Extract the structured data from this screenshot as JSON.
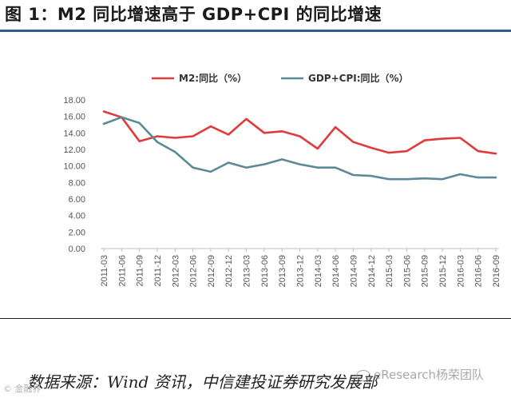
{
  "figure": {
    "title": "图 1：M2 同比增速高于 GDP+CPI 的同比增速",
    "source": "数据来源：Wind 资讯，中信建投证券研究发展部",
    "watermark": "eResearch杨荣团队",
    "corner_mark": "© 金融界"
  },
  "colors": {
    "m2": "#e03a3a",
    "gdp_cpi": "#5b8a96",
    "title_rule": "#2f5d8a"
  },
  "chart_data": {
    "type": "line",
    "title": "",
    "xlabel": "",
    "ylabel": "",
    "ylim": [
      0,
      18
    ],
    "yticks": [
      "0.00",
      "2.00",
      "4.00",
      "6.00",
      "8.00",
      "10.00",
      "12.00",
      "14.00",
      "16.00",
      "18.00"
    ],
    "grid": false,
    "legend": "top",
    "x": [
      "2011-03",
      "2011-06",
      "2011-09",
      "2011-12",
      "2012-03",
      "2012-06",
      "2012-09",
      "2012-12",
      "2013-03",
      "2013-06",
      "2013-09",
      "2013-12",
      "2014-03",
      "2014-06",
      "2014-09",
      "2014-12",
      "2015-03",
      "2015-06",
      "2015-09",
      "2015-12",
      "2016-03",
      "2016-06",
      "2016-09"
    ],
    "series": [
      {
        "name": "M2:同比（%）",
        "values": [
          16.6,
          15.9,
          13.0,
          13.6,
          13.4,
          13.6,
          14.8,
          13.8,
          15.7,
          14.0,
          14.2,
          13.6,
          12.1,
          14.7,
          12.9,
          12.2,
          11.6,
          11.8,
          13.1,
          13.3,
          13.4,
          11.8,
          11.5
        ]
      },
      {
        "name": "GDP+CPI:同比（%）",
        "values": [
          15.1,
          15.9,
          15.2,
          12.9,
          11.7,
          9.8,
          9.3,
          10.4,
          9.8,
          10.2,
          10.8,
          10.2,
          9.8,
          9.8,
          8.9,
          8.8,
          8.4,
          8.4,
          8.5,
          8.4,
          9.0,
          8.6,
          8.6
        ]
      }
    ]
  }
}
